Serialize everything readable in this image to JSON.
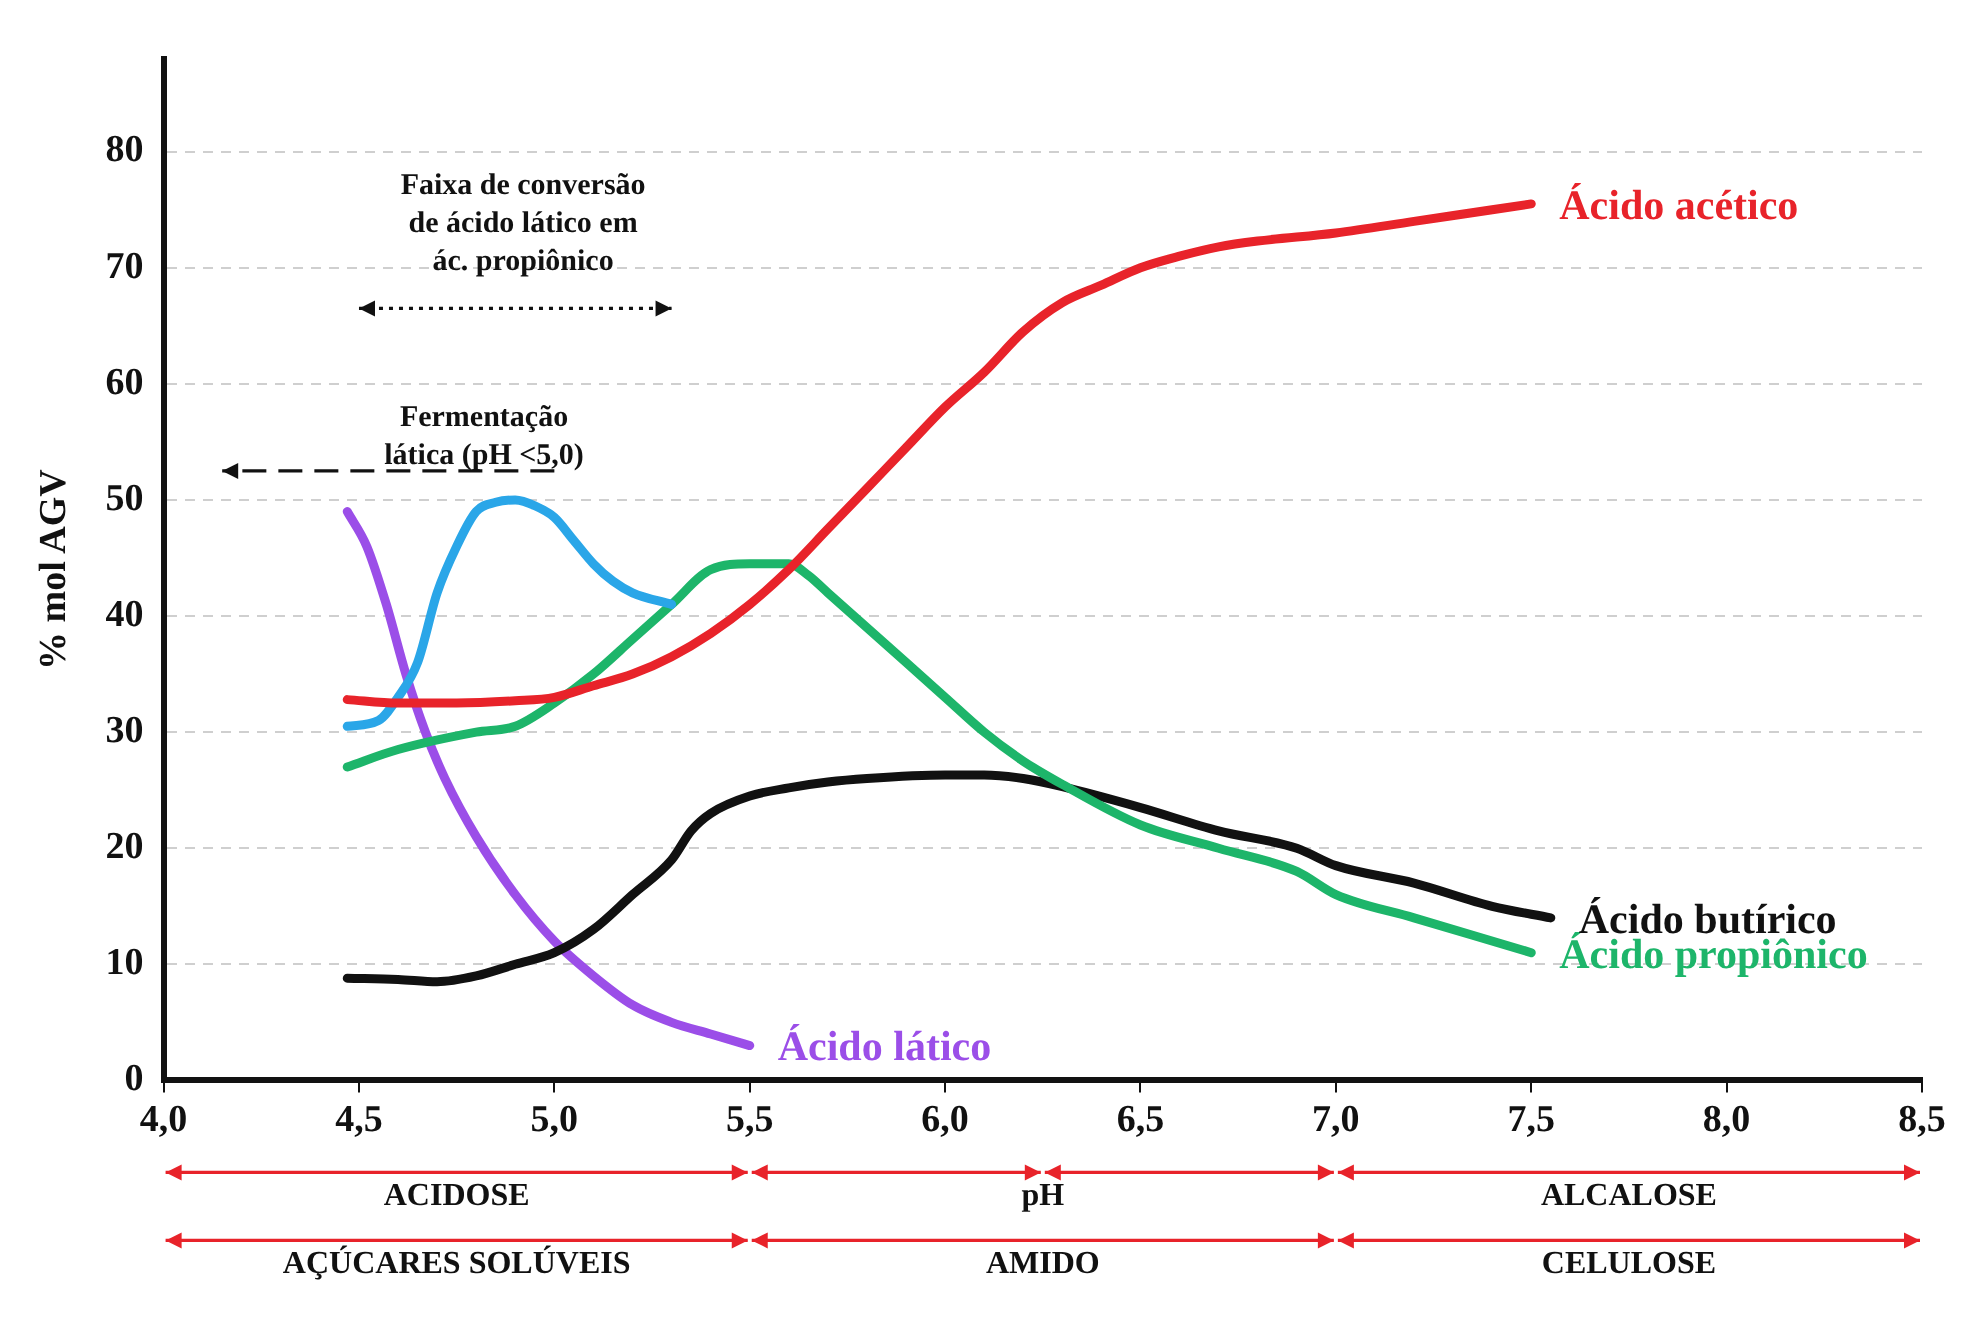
{
  "chart_data": {
    "type": "line",
    "ylabel": "% mol AGV",
    "xlim": [
      4.0,
      8.5
    ],
    "ylim": [
      0,
      88
    ],
    "xticks": [
      {
        "value": 4,
        "label": "4,0"
      },
      {
        "value": 4.5,
        "label": "4,5"
      },
      {
        "value": 5,
        "label": "5,0"
      },
      {
        "value": 5.5,
        "label": "5,5"
      },
      {
        "value": 6,
        "label": "6,0"
      },
      {
        "value": 6.5,
        "label": "6,5"
      },
      {
        "value": 7,
        "label": "7,0"
      },
      {
        "value": 7.5,
        "label": "7,5"
      },
      {
        "value": 8,
        "label": "8,0"
      },
      {
        "value": 8.5,
        "label": "8,5"
      }
    ],
    "yticks": [
      0,
      10,
      20,
      30,
      40,
      50,
      60,
      70,
      80
    ],
    "grid": "y",
    "legend": false,
    "marker": "none",
    "line_style": "solid",
    "series": [
      {
        "name": "Ácido acético",
        "color": "#e8232a",
        "x": [
          4.47,
          4.6,
          4.75,
          4.9,
          5.0,
          5.1,
          5.2,
          5.3,
          5.4,
          5.5,
          5.6,
          5.7,
          5.8,
          5.9,
          6.0,
          6.1,
          6.2,
          6.3,
          6.4,
          6.5,
          6.6,
          6.7,
          6.8,
          7.0,
          7.2,
          7.4,
          7.5
        ],
        "values": [
          32.8,
          32.5,
          32.5,
          32.7,
          33,
          34,
          35,
          36.5,
          38.5,
          41,
          44,
          47.5,
          51,
          54.5,
          58,
          61,
          64.5,
          67,
          68.5,
          70,
          71,
          71.8,
          72.3,
          73,
          74,
          75,
          75.5
        ]
      },
      {
        "color": "#2aa6e8",
        "x": [
          4.47,
          4.55,
          4.6,
          4.65,
          4.7,
          4.75,
          4.8,
          4.85,
          4.9,
          4.95,
          5.0,
          5.05,
          5.1,
          5.15,
          5.2,
          5.3
        ],
        "values": [
          30.5,
          31,
          33,
          36,
          42,
          46,
          49,
          49.8,
          50,
          49.5,
          48.5,
          46.5,
          44.5,
          43,
          42,
          41
        ]
      },
      {
        "name": "Ácido propiônico",
        "color": "#1db56a",
        "x": [
          4.47,
          4.6,
          4.8,
          4.9,
          5.0,
          5.1,
          5.2,
          5.3,
          5.4,
          5.5,
          5.6,
          5.65,
          5.7,
          5.8,
          5.9,
          6.0,
          6.1,
          6.2,
          6.3,
          6.5,
          6.7,
          6.9,
          7.0,
          7.2,
          7.5
        ],
        "values": [
          27,
          28.5,
          30,
          30.5,
          32.5,
          35,
          38,
          41,
          44,
          44.5,
          44.5,
          43.5,
          42,
          39,
          36,
          33,
          30,
          27.5,
          25.5,
          22,
          20,
          18,
          16,
          14,
          11
        ]
      },
      {
        "name": "Ácido butírico",
        "color": "#111111",
        "x": [
          4.47,
          4.6,
          4.7,
          4.8,
          4.9,
          5.0,
          5.1,
          5.2,
          5.3,
          5.35,
          5.4,
          5.5,
          5.6,
          5.7,
          5.8,
          6.0,
          6.1,
          6.2,
          6.3,
          6.5,
          6.7,
          6.9,
          7.0,
          7.2,
          7.4,
          7.55
        ],
        "values": [
          8.8,
          8.7,
          8.5,
          9,
          10,
          11,
          13,
          16,
          19,
          21.5,
          23,
          24.5,
          25.2,
          25.7,
          26,
          26.3,
          26.3,
          26,
          25.3,
          23.5,
          21.5,
          20,
          18.5,
          17,
          15,
          14
        ]
      },
      {
        "name": "Ácido lático",
        "color": "#9b4ee8",
        "x": [
          4.47,
          4.52,
          4.57,
          4.62,
          4.67,
          4.72,
          4.8,
          4.9,
          5.0,
          5.1,
          5.2,
          5.3,
          5.4,
          5.5
        ],
        "values": [
          49,
          46,
          41,
          35,
          30,
          26,
          21,
          16,
          12,
          9,
          6.5,
          5,
          4,
          3
        ]
      }
    ],
    "annotations": [
      "Faixa de conversão\nde ácido lático em\nác. propiônico",
      "Fermentação\nlática (pH <5,0)",
      "ACIDOSE",
      "pH",
      "ALCALOSE",
      "AÇÚCARES SOLÚVEIS",
      "AMIDO",
      "CELULOSE"
    ]
  }
}
